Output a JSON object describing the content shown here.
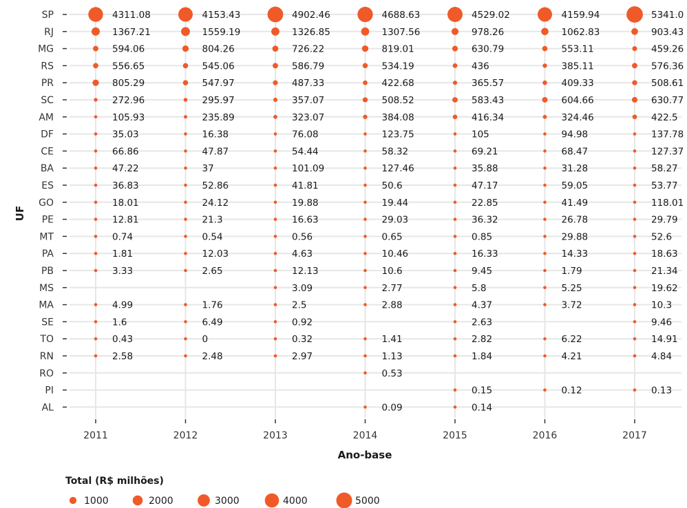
{
  "chart_data": {
    "type": "scatter",
    "xlabel": "Ano-base",
    "ylabel": "UF",
    "x_categories": [
      "2011",
      "2012",
      "2013",
      "2014",
      "2015",
      "2016",
      "2017"
    ],
    "y_categories": [
      "SP",
      "RJ",
      "MG",
      "RS",
      "PR",
      "SC",
      "AM",
      "DF",
      "CE",
      "BA",
      "ES",
      "GO",
      "PE",
      "MT",
      "PA",
      "PB",
      "MS",
      "MA",
      "SE",
      "TO",
      "RN",
      "RO",
      "PI",
      "AL"
    ],
    "values": [
      [
        "4311.08",
        "4153.43",
        "4902.46",
        "4688.63",
        "4529.02",
        "4159.94",
        "5341.0"
      ],
      [
        "1367.21",
        "1559.19",
        "1326.85",
        "1307.56",
        "978.26",
        "1062.83",
        "903.43"
      ],
      [
        "594.06",
        "804.26",
        "726.22",
        "819.01",
        "630.79",
        "553.11",
        "459.26"
      ],
      [
        "556.65",
        "545.06",
        "586.79",
        "534.19",
        "436",
        "385.11",
        "576.36"
      ],
      [
        "805.29",
        "547.97",
        "487.33",
        "422.68",
        "365.57",
        "409.33",
        "508.61"
      ],
      [
        "272.96",
        "295.97",
        "357.07",
        "508.52",
        "583.43",
        "604.66",
        "630.77"
      ],
      [
        "105.93",
        "235.89",
        "323.07",
        "384.08",
        "416.34",
        "324.46",
        "422.5"
      ],
      [
        "35.03",
        "16.38",
        "76.08",
        "123.75",
        "105",
        "94.98",
        "137.78"
      ],
      [
        "66.86",
        "47.87",
        "54.44",
        "58.32",
        "69.21",
        "68.47",
        "127.37"
      ],
      [
        "47.22",
        "37",
        "101.09",
        "127.46",
        "35.88",
        "31.28",
        "58.27"
      ],
      [
        "36.83",
        "52.86",
        "41.81",
        "50.6",
        "47.17",
        "59.05",
        "53.77"
      ],
      [
        "18.01",
        "24.12",
        "19.88",
        "19.44",
        "22.85",
        "41.49",
        "118.01"
      ],
      [
        "12.81",
        "21.3",
        "16.63",
        "29.03",
        "36.32",
        "26.78",
        "29.79"
      ],
      [
        "0.74",
        "0.54",
        "0.56",
        "0.65",
        "0.85",
        "29.88",
        "52.6"
      ],
      [
        "1.81",
        "12.03",
        "4.63",
        "10.46",
        "16.33",
        "14.33",
        "18.63"
      ],
      [
        "3.33",
        "2.65",
        "12.13",
        "10.6",
        "9.45",
        "1.79",
        "21.34"
      ],
      [
        null,
        null,
        "3.09",
        "2.77",
        "5.8",
        "5.25",
        "19.62"
      ],
      [
        "4.99",
        "1.76",
        "2.5",
        "2.88",
        "4.37",
        "3.72",
        "10.3"
      ],
      [
        "1.6",
        "6.49",
        "0.92",
        null,
        "2.63",
        null,
        "9.46"
      ],
      [
        "0.43",
        "0",
        "0.32",
        "1.41",
        "2.82",
        "6.22",
        "14.91"
      ],
      [
        "2.58",
        "2.48",
        "2.97",
        "1.13",
        "1.84",
        "4.21",
        "4.84"
      ],
      [
        null,
        null,
        null,
        "0.53",
        null,
        null,
        null
      ],
      [
        null,
        null,
        null,
        null,
        "0.15",
        "0.12",
        "0.13"
      ],
      [
        null,
        null,
        null,
        "0.09",
        "0.14",
        null,
        null
      ]
    ],
    "size_legend": {
      "title": "Total (R$ milhões)",
      "values": [
        "1000",
        "2000",
        "3000",
        "4000",
        "5000"
      ]
    },
    "point_color": "#f05a28",
    "grid": true
  }
}
